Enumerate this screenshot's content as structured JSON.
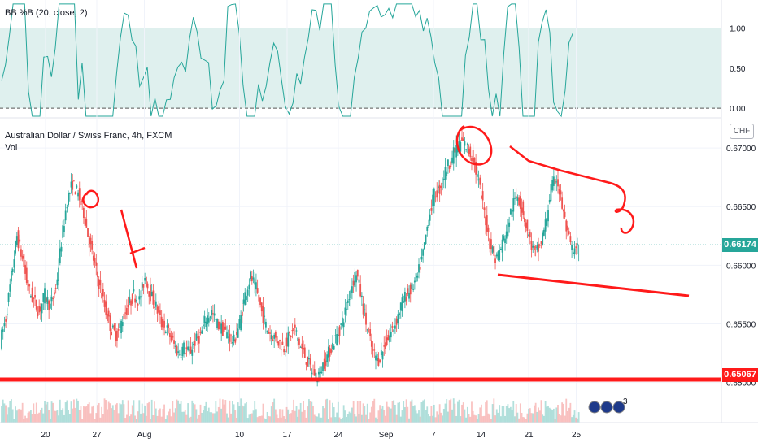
{
  "indicator": {
    "title": "BB %B (20, close, 2)",
    "ticks": [
      "1.00",
      "0.50",
      "0.00"
    ],
    "tick_values": [
      1.0,
      0.5,
      0.0
    ],
    "range": [
      -0.12,
      1.35
    ],
    "band_color": "#dff0ee",
    "line_color": "#26a69a"
  },
  "main": {
    "title": "Australian Dollar / Swiss Franc, 4h, FXCM",
    "volume_label": "Vol",
    "currency_badge": "CHF",
    "price_ticks": [
      "0.67000",
      "0.66500",
      "0.66000",
      "0.65500",
      "0.65000"
    ],
    "price_tick_values": [
      0.67,
      0.665,
      0.66,
      0.655,
      0.65
    ],
    "price_range": [
      0.6488,
      0.6725
    ],
    "current_price_label": "0.66174",
    "current_price": 0.66174,
    "current_price_color": "#26a69a",
    "support_label": "0.65067",
    "support_price": 0.65067,
    "drawing_color": "#ff1a1a",
    "up_color": "#26a69a",
    "down_color": "#ef5350"
  },
  "time_axis": {
    "labels": [
      "20",
      "27",
      "Aug",
      "10",
      "17",
      "24",
      "Sep",
      "7",
      "14",
      "21",
      "25"
    ],
    "label_bar_index": [
      12,
      26,
      39,
      65,
      78,
      92,
      105,
      118,
      131,
      144,
      157
    ]
  },
  "events_icon_count": "3",
  "chart_data": {
    "type": "candlestick",
    "title": "Australian Dollar / Swiss Franc, 4h, FXCM",
    "xlabel": "",
    "ylabel": "",
    "yunit": "CHF",
    "ylim": [
      0.6488,
      0.6725
    ],
    "grid": true,
    "series": [
      {
        "name": "",
        "close_path": [
          0.6535,
          0.6555,
          0.659,
          0.6625,
          0.6605,
          0.658,
          0.657,
          0.656,
          0.6575,
          0.6565,
          0.658,
          0.662,
          0.6655,
          0.667,
          0.666,
          0.6645,
          0.662,
          0.66,
          0.658,
          0.656,
          0.6545,
          0.654,
          0.6555,
          0.6565,
          0.6575,
          0.657,
          0.659,
          0.6575,
          0.6565,
          0.655,
          0.6545,
          0.6535,
          0.6525,
          0.653,
          0.6525,
          0.6535,
          0.654,
          0.6555,
          0.656,
          0.655,
          0.6545,
          0.654,
          0.6535,
          0.655,
          0.6575,
          0.659,
          0.658,
          0.656,
          0.6545,
          0.654,
          0.6535,
          0.653,
          0.654,
          0.6545,
          0.653,
          0.652,
          0.651,
          0.6505,
          0.6515,
          0.6525,
          0.6535,
          0.6545,
          0.656,
          0.658,
          0.6595,
          0.657,
          0.6545,
          0.6525,
          0.652,
          0.653,
          0.654,
          0.655,
          0.6565,
          0.6575,
          0.658,
          0.659,
          0.661,
          0.664,
          0.666,
          0.6665,
          0.668,
          0.669,
          0.67,
          0.6705,
          0.67,
          0.669,
          0.667,
          0.6645,
          0.662,
          0.6605,
          0.6615,
          0.663,
          0.665,
          0.666,
          0.6645,
          0.6625,
          0.661,
          0.6615,
          0.6635,
          0.6665,
          0.6675,
          0.665,
          0.6625,
          0.661,
          0.6615,
          0.663,
          0.6645,
          0.6635,
          0.6615,
          0.6605,
          0.661,
          0.6625,
          0.6617
        ]
      }
    ],
    "annotations": [
      "0.65067 horizontal support line",
      "descending channel lines",
      "circled highs"
    ]
  }
}
